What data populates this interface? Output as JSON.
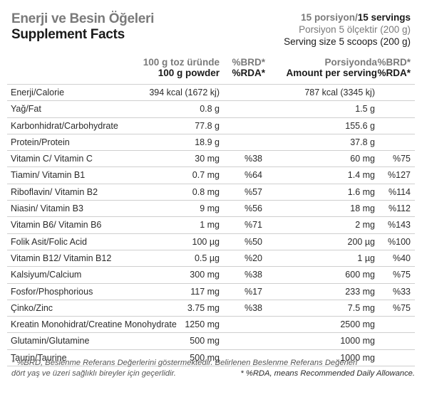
{
  "title": {
    "tr": "Enerji ve Besin Öğeleri",
    "en": "Supplement Facts"
  },
  "servings": {
    "tr": "15 porsiyon/",
    "en": "15 servings",
    "line2": "Porsiyon 5 ölçektir (200 g)",
    "line3": "Serving size 5 scoops (200 g)"
  },
  "headers": {
    "per100_tr": "100 g toz üründe",
    "per100_en": "100 g powder",
    "brd1": "%BRD*",
    "rda1": "%RDA*",
    "perserv_tr": "Porsiyonda",
    "perserv_en": "Amount per serving",
    "brd2": "%BRD*",
    "rda2": "%RDA*"
  },
  "rows": [
    {
      "name": "Enerji/Calorie",
      "v1": "394 kcal (1672 kj)",
      "p1": "",
      "v2": "787 kcal (3345 kj)",
      "p2": ""
    },
    {
      "name": "Yağ/Fat",
      "v1": "0.8 g",
      "p1": "",
      "v2": "1.5 g",
      "p2": ""
    },
    {
      "name": "Karbonhidrat/Carbohydrate",
      "v1": "77.8 g",
      "p1": "",
      "v2": "155.6 g",
      "p2": ""
    },
    {
      "name": "Protein/Protein",
      "v1": "18.9 g",
      "p1": "",
      "v2": "37.8 g",
      "p2": ""
    },
    {
      "name": "Vitamin C/ Vitamin C",
      "v1": "30 mg",
      "p1": "%38",
      "v2": "60 mg",
      "p2": "%75"
    },
    {
      "name": "Tiamin/ Vitamin B1",
      "v1": "0.7 mg",
      "p1": "%64",
      "v2": "1.4 mg",
      "p2": "%127"
    },
    {
      "name": "Riboflavin/ Vitamin B2",
      "v1": "0.8 mg",
      "p1": "%57",
      "v2": "1.6 mg",
      "p2": "%114"
    },
    {
      "name": "Niasin/ Vitamin B3",
      "v1": "9 mg",
      "p1": "%56",
      "v2": "18 mg",
      "p2": "%112"
    },
    {
      "name": "Vitamin B6/ Vitamin B6",
      "v1": "1 mg",
      "p1": "%71",
      "v2": "2 mg",
      "p2": "%143"
    },
    {
      "name": "Folik Asit/Folic Acid",
      "v1": "100 µg",
      "p1": "%50",
      "v2": "200 µg",
      "p2": "%100"
    },
    {
      "name": "Vitamin B12/ Vitamin B12",
      "v1": "0.5 µg",
      "p1": "%20",
      "v2": "1 µg",
      "p2": "%40"
    },
    {
      "name": "Kalsiyum/Calcium",
      "v1": "300 mg",
      "p1": "%38",
      "v2": "600 mg",
      "p2": "%75"
    },
    {
      "name": "Fosfor/Phosphorious",
      "v1": "117 mg",
      "p1": "%17",
      "v2": "233 mg",
      "p2": "%33"
    },
    {
      "name": "Çinko/Zinc",
      "v1": "3.75 mg",
      "p1": "%38",
      "v2": "7.5 mg",
      "p2": "%75"
    },
    {
      "name": "Kreatin Monohidrat/Creatine Monohydrate",
      "v1": "1250 mg",
      "p1": "",
      "v2": "2500 mg",
      "p2": ""
    },
    {
      "name": "Glutamin/Glutamine",
      "v1": "500 mg",
      "p1": "",
      "v2": "1000 mg",
      "p2": ""
    },
    {
      "name": "Taurin/Taurine",
      "v1": "500 mg",
      "p1": "",
      "v2": "1000 mg",
      "p2": ""
    }
  ],
  "footnote": {
    "line1": "* %BRD, Beslenme Referans Değerlerini göstermektedir. Belirlenen Beslenme Referans Değerleri",
    "line2": "dört yaş ve üzeri sağlıklı bireyler için geçerlidir.",
    "line3": "* %RDA, means Recommended Daily Allowance."
  }
}
